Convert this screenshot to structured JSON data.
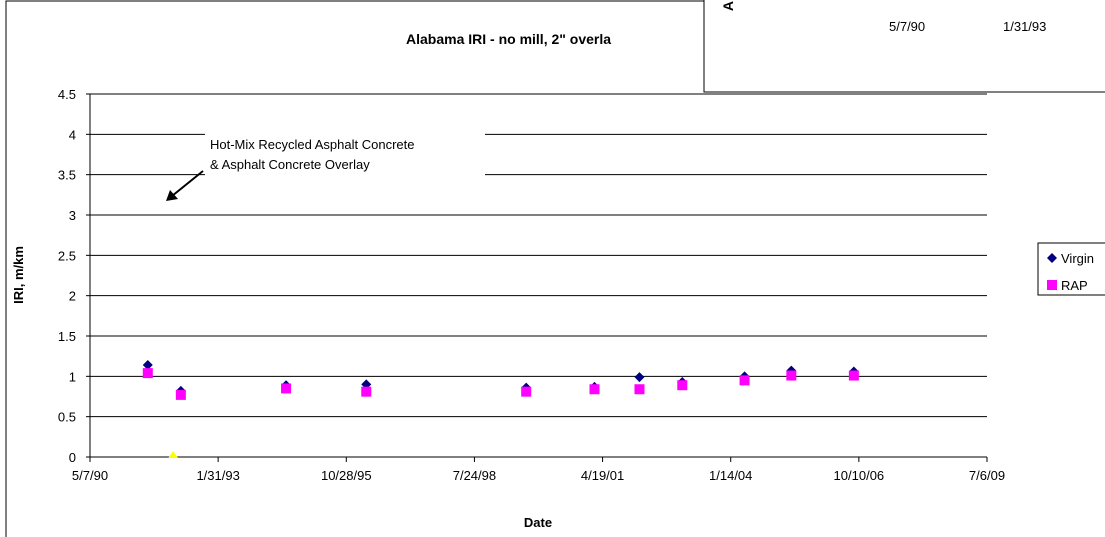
{
  "chart_data": {
    "type": "scatter",
    "title": "Alabama IRI - no mill, 2\" overla",
    "xlabel": "Date",
    "ylabel": "IRI, m/km",
    "x_ticks": [
      "5/7/90",
      "1/31/93",
      "10/28/95",
      "7/24/98",
      "4/19/01",
      "1/14/04",
      "10/10/06",
      "7/6/09"
    ],
    "y_ticks": [
      "0",
      "0.5",
      "1",
      "1.5",
      "2",
      "2.5",
      "3",
      "3.5",
      "4",
      "4.5"
    ],
    "xlim": [
      "1990-05-07",
      "2009-07-06"
    ],
    "ylim": [
      0,
      4.5
    ],
    "grid": "horizontal",
    "legend_position": "right",
    "annotation": {
      "line1": "Hot-Mix Recycled Asphalt Concrete",
      "line2": "& Asphalt Concrete Overlay"
    },
    "series": [
      {
        "name": "Virgin",
        "color": "#000080",
        "marker": "diamond",
        "points": [
          {
            "x": "1991-08-01",
            "y": 1.14
          },
          {
            "x": "1992-04-15",
            "y": 0.82
          },
          {
            "x": "1994-07-15",
            "y": 0.89
          },
          {
            "x": "1996-04-01",
            "y": 0.9
          },
          {
            "x": "1999-09-01",
            "y": 0.86
          },
          {
            "x": "2001-02-15",
            "y": 0.87
          },
          {
            "x": "2002-02-01",
            "y": 0.99
          },
          {
            "x": "2003-01-01",
            "y": 0.93
          },
          {
            "x": "2004-05-01",
            "y": 1.0
          },
          {
            "x": "2005-05-01",
            "y": 1.07
          },
          {
            "x": "2006-09-01",
            "y": 1.06
          }
        ]
      },
      {
        "name": "RAP",
        "color": "#ff00ff",
        "marker": "square",
        "points": [
          {
            "x": "1991-08-01",
            "y": 1.04
          },
          {
            "x": "1992-04-15",
            "y": 0.77
          },
          {
            "x": "1994-07-15",
            "y": 0.85
          },
          {
            "x": "1996-04-01",
            "y": 0.81
          },
          {
            "x": "1999-09-01",
            "y": 0.81
          },
          {
            "x": "2001-02-15",
            "y": 0.84
          },
          {
            "x": "2002-02-01",
            "y": 0.84
          },
          {
            "x": "2003-01-01",
            "y": 0.89
          },
          {
            "x": "2004-05-01",
            "y": 0.95
          },
          {
            "x": "2005-05-01",
            "y": 1.01
          },
          {
            "x": "2006-09-01",
            "y": 1.01
          }
        ]
      }
    ],
    "extra_marker": {
      "x": "1992-02-15",
      "y": 0,
      "color": "#ffff00"
    }
  },
  "inset": {
    "letter": "A",
    "labels": [
      "5/7/90",
      "1/31/93"
    ]
  }
}
